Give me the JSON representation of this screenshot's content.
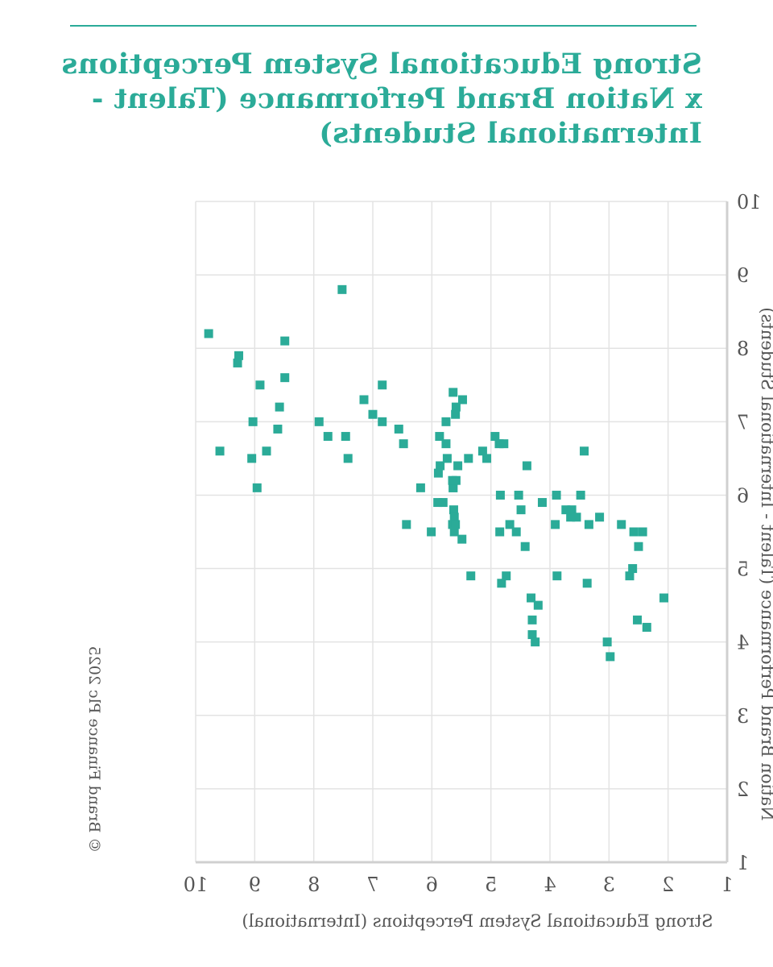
{
  "title_lines": [
    "Strong Educational System Perceptions",
    "x Nation Brand Performance (Talent -",
    "International Students)"
  ],
  "copyright": "© Brand Finance Plc 2025",
  "colors": {
    "accent": "#2bab98",
    "point": "#2bab98",
    "grid": "#e3e3e3",
    "axis": "#d0d0d0",
    "text": "#555555"
  },
  "chart_data": {
    "type": "scatter",
    "title": "Strong Educational System Perceptions x Nation Brand Performance (Talent - International Students)",
    "xlabel": "Strong Educational System Perceptions (International)",
    "ylabel": "Nation Brand Performance (Talent - International Students)",
    "xlim": [
      1,
      10
    ],
    "ylim": [
      1,
      10
    ],
    "xticks": [
      "1",
      "2",
      "3",
      "4",
      "5",
      "6",
      "7",
      "8",
      "9",
      "10"
    ],
    "yticks": [
      "1",
      "2",
      "3",
      "4",
      "5",
      "6",
      "7",
      "8",
      "9",
      "10"
    ],
    "x_reversed": true,
    "mirrored_image": true,
    "grid": true,
    "series": [
      {
        "points": [
          [
            9.78,
            8.2
          ],
          [
            9.27,
            7.9
          ],
          [
            9.29,
            7.8
          ],
          [
            8.91,
            7.5
          ],
          [
            8.49,
            8.1
          ],
          [
            8.49,
            7.6
          ],
          [
            8.58,
            7.2
          ],
          [
            8.61,
            6.9
          ],
          [
            7.52,
            8.8
          ],
          [
            9.03,
            7.0
          ],
          [
            9.59,
            6.6
          ],
          [
            9.05,
            6.5
          ],
          [
            8.8,
            6.6
          ],
          [
            8.96,
            6.1
          ],
          [
            7.91,
            7.0
          ],
          [
            7.76,
            6.8
          ],
          [
            7.46,
            6.8
          ],
          [
            7.42,
            6.5
          ],
          [
            7.15,
            7.3
          ],
          [
            7.0,
            7.1
          ],
          [
            6.84,
            7.5
          ],
          [
            6.84,
            7.0
          ],
          [
            6.56,
            6.9
          ],
          [
            6.48,
            6.7
          ],
          [
            6.43,
            5.6
          ],
          [
            6.19,
            6.1
          ],
          [
            6.01,
            5.5
          ],
          [
            5.76,
            6.7
          ],
          [
            5.65,
            5.6
          ],
          [
            5.89,
            6.3
          ],
          [
            5.87,
            6.8
          ],
          [
            5.86,
            6.4
          ],
          [
            5.9,
            5.9
          ],
          [
            5.81,
            5.9
          ],
          [
            5.76,
            7.0
          ],
          [
            5.74,
            6.5
          ],
          [
            5.64,
            7.4
          ],
          [
            5.59,
            7.2
          ],
          [
            5.6,
            7.1
          ],
          [
            5.64,
            6.1
          ],
          [
            5.63,
            5.8
          ],
          [
            5.64,
            6.1
          ],
          [
            5.62,
            5.7
          ],
          [
            5.6,
            5.6
          ],
          [
            5.49,
            5.4
          ],
          [
            5.48,
            7.3
          ],
          [
            5.62,
            5.5
          ],
          [
            5.56,
            6.4
          ],
          [
            5.59,
            6.2
          ],
          [
            5.65,
            6.2
          ],
          [
            5.38,
            6.5
          ],
          [
            5.34,
            4.9
          ],
          [
            5.14,
            6.6
          ],
          [
            5.07,
            6.5
          ],
          [
            4.93,
            6.8
          ],
          [
            4.86,
            6.7
          ],
          [
            4.85,
            5.5
          ],
          [
            4.84,
            6.0
          ],
          [
            4.82,
            4.8
          ],
          [
            4.78,
            6.7
          ],
          [
            4.74,
            4.9
          ],
          [
            4.68,
            5.6
          ],
          [
            4.57,
            5.5
          ],
          [
            4.53,
            6.0
          ],
          [
            4.49,
            5.8
          ],
          [
            4.42,
            5.3
          ],
          [
            4.39,
            6.4
          ],
          [
            4.32,
            4.6
          ],
          [
            4.3,
            4.3
          ],
          [
            4.3,
            4.1
          ],
          [
            4.25,
            4.0
          ],
          [
            4.2,
            4.5
          ],
          [
            4.13,
            5.9
          ],
          [
            3.91,
            5.6
          ],
          [
            3.89,
            6.0
          ],
          [
            3.88,
            4.9
          ],
          [
            3.73,
            5.8
          ],
          [
            3.65,
            5.7
          ],
          [
            3.63,
            5.8
          ],
          [
            3.55,
            5.7
          ],
          [
            3.48,
            6.0
          ],
          [
            3.42,
            6.6
          ],
          [
            3.37,
            4.8
          ],
          [
            3.34,
            5.6
          ],
          [
            3.16,
            5.7
          ],
          [
            3.03,
            4.0
          ],
          [
            2.98,
            3.8
          ],
          [
            2.79,
            5.6
          ],
          [
            2.65,
            4.9
          ],
          [
            2.6,
            5.0
          ],
          [
            2.58,
            5.5
          ],
          [
            2.52,
            4.3
          ],
          [
            2.43,
            5.5
          ],
          [
            2.36,
            4.2
          ],
          [
            2.07,
            4.6
          ],
          [
            2.5,
            5.3
          ]
        ]
      }
    ]
  }
}
